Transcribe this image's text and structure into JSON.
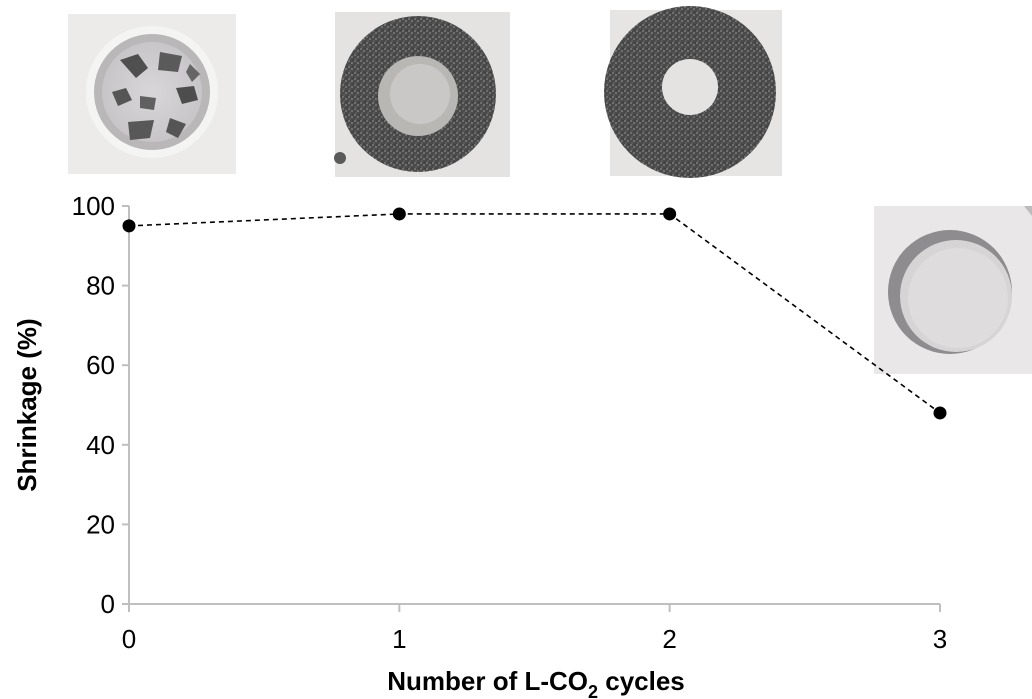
{
  "chart_data": {
    "type": "line",
    "x": [
      0,
      1,
      2,
      3
    ],
    "series": [
      {
        "values": [
          95,
          98,
          98,
          48
        ]
      }
    ],
    "xlabel_main": "Number of L-CO",
    "xlabel_sub": "2",
    "xlabel_tail": " cycles",
    "ylabel": "Shrinkage (%)",
    "xlim": [
      0,
      3
    ],
    "ylim": [
      0,
      100
    ],
    "x_ticks": [
      "0",
      "1",
      "2",
      "3"
    ],
    "y_ticks": [
      "0",
      "20",
      "40",
      "60",
      "80",
      "100"
    ],
    "line_style": "dashed",
    "marker": "filled-circle",
    "grid": false,
    "colors": {
      "line": "#000000",
      "axis": "#bfbfbf",
      "photo_frame": "#ededeb"
    }
  },
  "photos": [
    {
      "name": "sample-photo-cycle-0",
      "kind": "fragmented-aerogel"
    },
    {
      "name": "sample-photo-cycle-1",
      "kind": "dark-ring-with-light-center"
    },
    {
      "name": "sample-photo-cycle-2",
      "kind": "dark-ring-with-hole"
    },
    {
      "name": "sample-photo-cycle-3",
      "kind": "empty-white-well"
    }
  ]
}
